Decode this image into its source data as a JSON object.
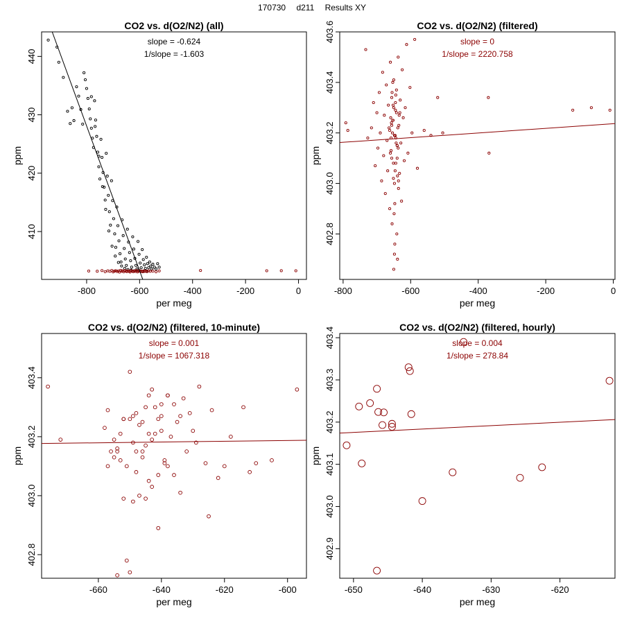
{
  "header": {
    "date": "170730",
    "station": "d211",
    "label": "Results XY"
  },
  "colors": {
    "all_points": "#000000",
    "filtered": "#8b0000",
    "fit_all": "#000000",
    "fit_filtered": "#8b0000"
  },
  "chart_data": [
    {
      "type": "scatter",
      "title": "CO2 vs. d(O2/N2) (all)",
      "xlabel": "per meg",
      "ylabel": "ppm",
      "xlim": [
        -970,
        30
      ],
      "ylim": [
        401.8,
        444.2
      ],
      "xticks": [
        -800,
        -600,
        -400,
        -200,
        0
      ],
      "xtick_labels": [
        "-800",
        "-600",
        "-400",
        "-200",
        "0"
      ],
      "yticks": [
        410,
        420,
        430,
        440
      ],
      "ytick_labels": [
        "410",
        "420",
        "430",
        "440"
      ],
      "stats": [
        "slope = -0.624",
        "1/slope = -1.603"
      ],
      "stat_color": "#000000",
      "fit": {
        "x": [
          -930,
          -588
        ],
        "y": [
          444.2,
          401.8
        ],
        "color": "#000000"
      },
      "series": [
        {
          "name": "all",
          "color": "#000000",
          "size": 1.6,
          "x": [
            -945,
            -912,
            -905,
            -888,
            -872,
            -862,
            -855,
            -848,
            -838,
            -830,
            -822,
            -815,
            -810,
            -805,
            -800,
            -795,
            -790,
            -786,
            -782,
            -778,
            -774,
            -770,
            -766,
            -762,
            -758,
            -754,
            -750,
            -746,
            -742,
            -738,
            -734,
            -730,
            -726,
            -722,
            -718,
            -714,
            -710,
            -706,
            -702,
            -698,
            -694,
            -690,
            -686,
            -682,
            -678,
            -674,
            -670,
            -666,
            -662,
            -658,
            -654,
            -650,
            -646,
            -642,
            -638,
            -634,
            -630,
            -626,
            -622,
            -618,
            -614,
            -610,
            -606,
            -602,
            -598,
            -594,
            -590,
            -586,
            -582,
            -578,
            -574,
            -570,
            -566,
            -562,
            -558,
            -554,
            -550,
            -544,
            -538,
            -532,
            -526,
            -782,
            -768,
            -754,
            -740,
            -728,
            -716,
            -704,
            -692,
            -680,
            -668,
            -656,
            -644,
            -632,
            -620,
            -608,
            -596,
            -584,
            -572
          ],
          "y": [
            442.8,
            441.6,
            439.0,
            436.4,
            430.6,
            428.5,
            431.2,
            429.0,
            434.8,
            433.2,
            430.9,
            428.4,
            437.2,
            436.0,
            434.5,
            432.8,
            431.0,
            429.3,
            427.7,
            426.0,
            424.4,
            432.4,
            429.1,
            426.3,
            423.6,
            421.1,
            419.0,
            425.8,
            422.7,
            420.1,
            417.6,
            415.4,
            423.4,
            419.5,
            416.2,
            413.4,
            411.1,
            418.7,
            415.3,
            412.2,
            409.6,
            407.3,
            414.2,
            411.0,
            408.4,
            406.2,
            404.8,
            412.0,
            409.3,
            407.1,
            405.3,
            404.2,
            410.4,
            408.2,
            406.4,
            405.0,
            403.9,
            409.1,
            407.0,
            405.4,
            404.2,
            403.6,
            408.3,
            406.1,
            404.6,
            403.8,
            406.9,
            405.2,
            404.3,
            403.7,
            405.6,
            404.5,
            403.8,
            404.8,
            404.1,
            403.6,
            404.4,
            403.9,
            403.6,
            404.5,
            403.9,
            433.1,
            428.0,
            422.9,
            417.7,
            413.8,
            410.1,
            407.5,
            405.8,
            404.7,
            404.1,
            403.7,
            403.5,
            403.4,
            403.3,
            403.3,
            403.2,
            403.2,
            403.2
          ]
        },
        {
          "name": "filtered",
          "color": "#8b0000",
          "size": 1.6,
          "x": [
            -792,
            -760,
            -742,
            -730,
            -720,
            -712,
            -705,
            -700,
            -695,
            -690,
            -685,
            -680,
            -676,
            -672,
            -668,
            -664,
            -660,
            -656,
            -652,
            -648,
            -644,
            -640,
            -636,
            -632,
            -628,
            -624,
            -620,
            -616,
            -612,
            -608,
            -604,
            -600,
            -596,
            -592,
            -588,
            -584,
            -580,
            -576,
            -572,
            -566,
            -560,
            -550,
            -538,
            -526,
            -370,
            -120,
            -65,
            -10
          ],
          "y": [
            403.24,
            403.2,
            403.31,
            403.12,
            403.27,
            403.18,
            403.33,
            403.09,
            403.22,
            403.3,
            403.15,
            403.25,
            403.05,
            403.35,
            403.19,
            403.28,
            403.1,
            403.32,
            403.21,
            403.14,
            403.27,
            403.18,
            403.06,
            403.3,
            403.22,
            403.12,
            403.26,
            403.17,
            403.33,
            403.08,
            403.23,
            403.29,
            403.15,
            403.2,
            403.11,
            403.27,
            403.18,
            403.24,
            403.13,
            403.28,
            403.19,
            403.22,
            403.1,
            403.26,
            403.33,
            403.28,
            403.29,
            403.28
          ]
        }
      ]
    },
    {
      "type": "scatter",
      "title": "CO2 vs. d(O2/N2) (filtered)",
      "xlabel": "per meg",
      "ylabel": "ppm",
      "xlim": [
        -810,
        5
      ],
      "ylim": [
        402.62,
        403.6
      ],
      "xticks": [
        -800,
        -600,
        -400,
        -200,
        0
      ],
      "xtick_labels": [
        "-800",
        "-600",
        "-400",
        "-200",
        "0"
      ],
      "yticks": [
        402.8,
        403.0,
        403.2,
        403.4,
        403.6
      ],
      "ytick_labels": [
        "402.8",
        "403.0",
        "403.2",
        "403.4",
        "403.6"
      ],
      "stats": [
        "slope = 0",
        "1/slope = 2220.758"
      ],
      "stat_color": "#8b0000",
      "fit": {
        "x": [
          -810,
          5
        ],
        "y": [
          403.162,
          403.237
        ],
        "color": "#8b0000"
      },
      "series": [
        {
          "name": "filtered",
          "color": "#8b0000",
          "size": 1.6,
          "x": [
            -792,
            -786,
            -733,
            -727,
            -716,
            -710,
            -705,
            -700,
            -697,
            -693,
            -690,
            -686,
            -683,
            -680,
            -678,
            -675,
            -672,
            -670,
            -668,
            -666,
            -664,
            -662,
            -660,
            -658,
            -656,
            -655,
            -653,
            -651,
            -650,
            -648,
            -647,
            -645,
            -644,
            -642,
            -640,
            -639,
            -637,
            -635,
            -633,
            -631,
            -629,
            -627,
            -625,
            -622,
            -619,
            -616,
            -612,
            -608,
            -602,
            -596,
            -588,
            -580,
            -560,
            -540,
            -520,
            -505,
            -370,
            -368,
            -120,
            -65,
            -10,
            -656,
            -652,
            -648,
            -644,
            -640,
            -636,
            -650,
            -654,
            -646,
            -642,
            -658,
            -638,
            -660,
            -634,
            -649,
            -645,
            -651,
            -653,
            -641,
            -657,
            -643,
            -647,
            -655,
            -639,
            -659,
            -637,
            -662,
            -632,
            -648,
            -644,
            -652,
            -640,
            -656,
            -636,
            -650,
            -646
          ],
          "y": [
            403.24,
            403.21,
            403.53,
            403.18,
            403.22,
            403.32,
            403.07,
            403.28,
            403.14,
            403.36,
            403.2,
            403.01,
            403.44,
            403.11,
            403.27,
            402.96,
            403.39,
            403.17,
            403.05,
            403.31,
            403.22,
            402.9,
            403.48,
            403.13,
            403.34,
            402.84,
            403.25,
            403.02,
            403.41,
            403.19,
            402.76,
            403.29,
            403.08,
            403.37,
            403.15,
            402.7,
            403.5,
            403.23,
            403.04,
            403.33,
            403.16,
            402.93,
            403.45,
            403.26,
            403.09,
            403.3,
            403.55,
            403.12,
            403.38,
            403.2,
            403.57,
            403.06,
            403.21,
            403.19,
            403.34,
            403.2,
            403.34,
            403.12,
            403.29,
            403.3,
            403.29,
            403.1,
            403.25,
            403.0,
            403.35,
            403.15,
            402.98,
            403.3,
            403.2,
            403.05,
            403.28,
            403.18,
            403.22,
            403.12,
            403.27,
            402.88,
            403.32,
            403.08,
            403.4,
            402.8,
            403.24,
            403.16,
            402.92,
            403.36,
            403.03,
            403.26,
            403.14,
            403.21,
            403.28,
            402.72,
            403.18,
            403.31,
            403.1,
            403.23,
            403.01,
            402.66,
            403.19
          ]
        }
      ]
    },
    {
      "type": "scatter",
      "title": "CO2 vs. d(O2/N2) (filtered, 10-minute)",
      "xlabel": "per meg",
      "ylabel": "ppm",
      "xlim": [
        -678,
        -594
      ],
      "ylim": [
        402.72,
        403.55
      ],
      "xticks": [
        -660,
        -640,
        -620,
        -600
      ],
      "xtick_labels": [
        "-660",
        "-640",
        "-620",
        "-600"
      ],
      "yticks": [
        402.8,
        403.0,
        403.2,
        403.4
      ],
      "ytick_labels": [
        "402.8",
        "403.0",
        "403.2",
        "403.4"
      ],
      "stats": [
        "slope = 0.001",
        "1/slope = 1067.318"
      ],
      "stat_color": "#8b0000",
      "fit": {
        "x": [
          -678,
          -594
        ],
        "y": [
          403.177,
          403.188
        ],
        "color": "#8b0000"
      },
      "series": [
        {
          "name": "10-minute",
          "color": "#8b0000",
          "size": 2.4,
          "x": [
            -676,
            -672,
            -658,
            -657,
            -655,
            -654,
            -653,
            -652,
            -651,
            -650,
            -649,
            -648,
            -647,
            -646,
            -645,
            -644,
            -643,
            -642,
            -641,
            -640,
            -639,
            -638,
            -637,
            -636,
            -635,
            -634,
            -633,
            -632,
            -631,
            -630,
            -629,
            -628,
            -626,
            -625,
            -624,
            -622,
            -620,
            -618,
            -614,
            -612,
            -610,
            -605,
            -597,
            -656,
            -653,
            -650,
            -648,
            -646,
            -644,
            -642,
            -640,
            -638,
            -652,
            -647,
            -643,
            -639,
            -649,
            -645,
            -641,
            -651,
            -654,
            -636,
            -634,
            -655,
            -650,
            -646,
            -643,
            -640,
            -648,
            -644,
            -641,
            -652,
            -638,
            -654,
            -657,
            -649,
            -645
          ],
          "y": [
            403.37,
            403.19,
            403.23,
            403.29,
            403.13,
            403.16,
            403.21,
            403.26,
            403.1,
            403.42,
            403.18,
            403.08,
            403.24,
            403.13,
            403.3,
            403.05,
            403.36,
            403.21,
            402.89,
            403.27,
            403.12,
            403.34,
            403.2,
            403.07,
            403.25,
            403.01,
            403.33,
            403.15,
            403.28,
            403.22,
            403.18,
            403.37,
            403.11,
            402.93,
            403.29,
            403.06,
            403.1,
            403.2,
            403.3,
            403.08,
            403.11,
            403.12,
            403.36,
            403.15,
            403.12,
            403.26,
            403.28,
            403.25,
            403.34,
            403.3,
            403.31,
            403.34,
            402.99,
            403.0,
            403.03,
            403.11,
            402.98,
            403.17,
            403.26,
            402.78,
            402.73,
            403.31,
            403.27,
            403.19,
            402.74,
            403.15,
            403.19,
            403.22,
            403.15,
            403.21,
            403.07,
            403.26,
            403.1,
            403.15,
            403.1,
            403.27,
            402.99
          ]
        }
      ]
    },
    {
      "type": "scatter",
      "title": "CO2 vs. d(O2/N2) (filtered, hourly)",
      "xlabel": "per meg",
      "ylabel": "ppm",
      "xlim": [
        -652,
        -612
      ],
      "ylim": [
        402.83,
        403.41
      ],
      "xticks": [
        -650,
        -640,
        -630,
        -620
      ],
      "xtick_labels": [
        "-650",
        "-640",
        "-630",
        "-620"
      ],
      "yticks": [
        402.9,
        403.0,
        403.1,
        403.2,
        403.3,
        403.4
      ],
      "ytick_labels": [
        "402.9",
        "403.0",
        "403.1",
        "403.2",
        "403.3",
        "403.4"
      ],
      "stats": [
        "slope = 0.004",
        "1/slope = 278.84"
      ],
      "stat_color": "#8b0000",
      "fit": {
        "x": [
          -652,
          -612
        ],
        "y": [
          403.174,
          403.206
        ],
        "color": "#8b0000"
      },
      "series": [
        {
          "name": "hourly",
          "color": "#8b0000",
          "size": 5,
          "x": [
            -651.0,
            -649.2,
            -648.8,
            -647.6,
            -646.6,
            -646.4,
            -645.8,
            -645.6,
            -644.4,
            -644.4,
            -642.0,
            -641.8,
            -641.6,
            -640.0,
            -634.0,
            -635.6,
            -646.6,
            -625.8,
            -622.6,
            -612.8
          ],
          "y": [
            403.145,
            403.237,
            403.102,
            403.245,
            403.279,
            403.224,
            403.193,
            403.223,
            403.196,
            403.189,
            403.33,
            403.321,
            403.219,
            403.013,
            403.39,
            403.081,
            402.848,
            403.068,
            403.093,
            403.298
          ]
        }
      ]
    }
  ]
}
